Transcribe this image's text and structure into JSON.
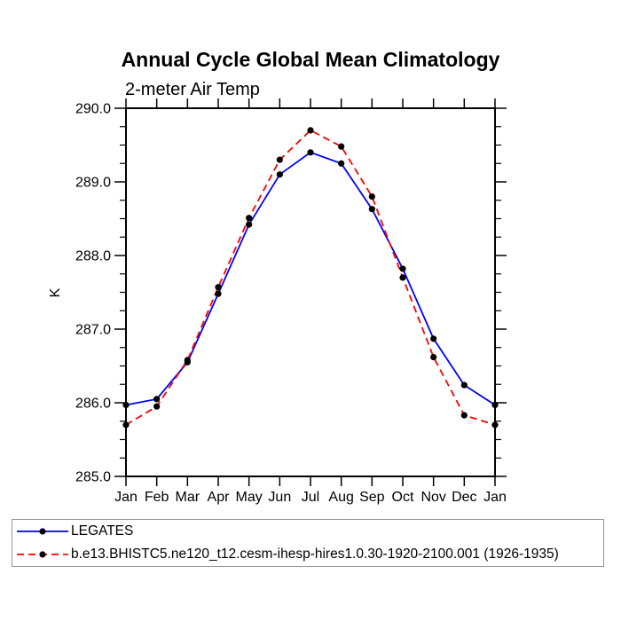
{
  "page": {
    "background": "#ffffff"
  },
  "chart_data": {
    "type": "line",
    "title": "Annual Cycle Global Mean Climatology",
    "subtitle": "2-meter Air Temp",
    "ylabel": "K",
    "xlabel": "",
    "categories": [
      "Jan",
      "Feb",
      "Mar",
      "Apr",
      "May",
      "Jun",
      "Jul",
      "Aug",
      "Sep",
      "Oct",
      "Nov",
      "Dec",
      "Jan"
    ],
    "series": [
      {
        "name": "LEGATES",
        "color": "#0000ff",
        "line_style": "solid",
        "marker": "black-dot",
        "values": [
          285.97,
          286.05,
          286.55,
          287.48,
          288.42,
          289.1,
          289.4,
          289.25,
          288.63,
          287.82,
          286.87,
          286.24,
          285.97
        ]
      },
      {
        "name": "b.e13.BHISTC5.ne120_t12.cesm-ihesp-hires1.0.30-1920-2100.001 (1926-1935)",
        "color": "#ff0000",
        "line_style": "dashed",
        "marker": "black-dot",
        "values": [
          285.7,
          285.95,
          286.58,
          287.57,
          288.51,
          289.3,
          289.7,
          289.48,
          288.8,
          287.7,
          286.62,
          285.83,
          285.7
        ]
      }
    ],
    "ylim": [
      285.0,
      290.0
    ],
    "ytick_step": 1.0,
    "yminor_step": 0.25,
    "ytick_labels": [
      "285.0",
      "286.0",
      "287.0",
      "288.0",
      "289.0",
      "290.0"
    ],
    "grid": "off",
    "frame": "box-with-outward-ticks",
    "legend_position": "bottom-left-box",
    "marker_color": "#000000",
    "axis_color": "#000000"
  }
}
